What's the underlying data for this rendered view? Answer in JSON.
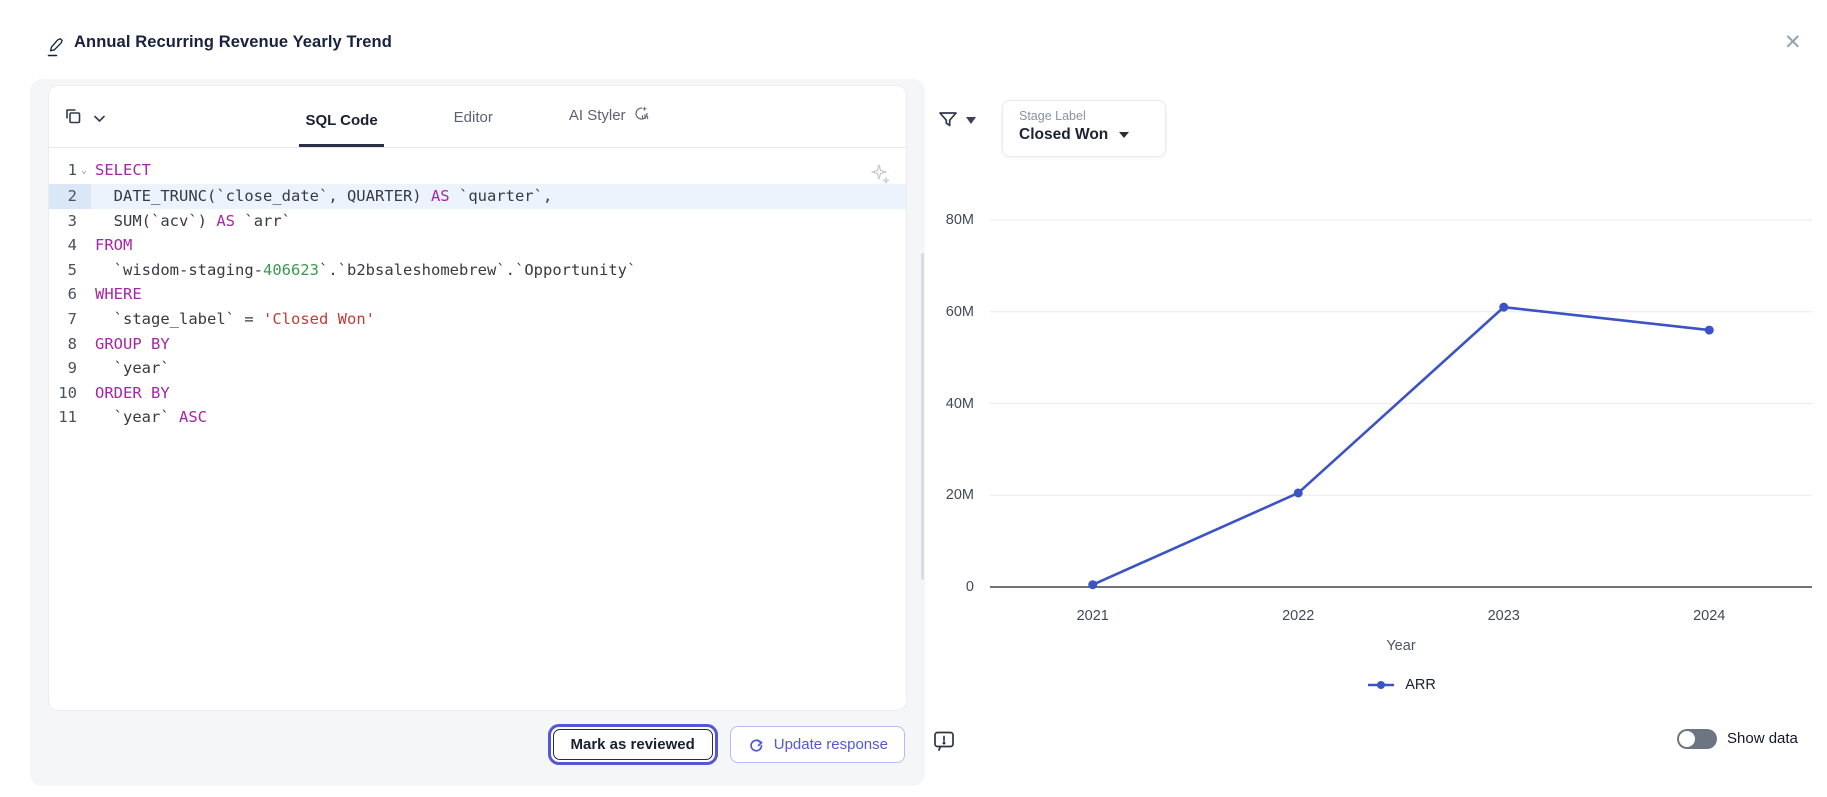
{
  "header": {
    "title": "Annual Recurring Revenue Yearly Trend",
    "close_icon": "✕"
  },
  "panel": {
    "tabs": [
      {
        "id": "sql-code",
        "label": "SQL Code",
        "active": true
      },
      {
        "id": "editor",
        "label": "Editor",
        "active": false
      },
      {
        "id": "ai-styler",
        "label": "AI Styler",
        "active": false
      }
    ],
    "editor": {
      "language": "sql",
      "highlighted_line": 2,
      "lines": [
        {
          "num": 1,
          "fold": true,
          "tokens": [
            [
              "kw",
              "SELECT"
            ]
          ]
        },
        {
          "num": 2,
          "fold": false,
          "tokens": [
            [
              "pl",
              "  DATE_TRUNC("
            ],
            [
              "id",
              "`close_date`"
            ],
            [
              "pl",
              ", QUARTER) "
            ],
            [
              "kw",
              "AS"
            ],
            [
              "pl",
              " "
            ],
            [
              "id",
              "`quarter`"
            ],
            [
              "pl",
              ","
            ]
          ]
        },
        {
          "num": 3,
          "fold": false,
          "tokens": [
            [
              "pl",
              "  SUM("
            ],
            [
              "id",
              "`acv`"
            ],
            [
              "pl",
              ") "
            ],
            [
              "kw",
              "AS"
            ],
            [
              "pl",
              " "
            ],
            [
              "id",
              "`arr`"
            ]
          ]
        },
        {
          "num": 4,
          "fold": false,
          "tokens": [
            [
              "kw",
              "FROM"
            ]
          ]
        },
        {
          "num": 5,
          "fold": false,
          "tokens": [
            [
              "pl",
              "  "
            ],
            [
              "id",
              "`wisdom-staging-"
            ],
            [
              "num",
              "406623"
            ],
            [
              "id",
              "`"
            ],
            [
              "pl",
              "."
            ],
            [
              "id",
              "`b2bsaleshomebrew`"
            ],
            [
              "pl",
              "."
            ],
            [
              "id",
              "`Opportunity`"
            ]
          ]
        },
        {
          "num": 6,
          "fold": false,
          "tokens": [
            [
              "kw",
              "WHERE"
            ]
          ]
        },
        {
          "num": 7,
          "fold": false,
          "tokens": [
            [
              "pl",
              "  "
            ],
            [
              "id",
              "`stage_label`"
            ],
            [
              "pl",
              " = "
            ],
            [
              "str",
              "'Closed Won'"
            ]
          ]
        },
        {
          "num": 8,
          "fold": false,
          "tokens": [
            [
              "kw",
              "GROUP BY"
            ]
          ]
        },
        {
          "num": 9,
          "fold": false,
          "tokens": [
            [
              "pl",
              "  "
            ],
            [
              "id",
              "`year`"
            ]
          ]
        },
        {
          "num": 10,
          "fold": false,
          "tokens": [
            [
              "kw",
              "ORDER BY"
            ]
          ]
        },
        {
          "num": 11,
          "fold": false,
          "tokens": [
            [
              "pl",
              "  "
            ],
            [
              "id",
              "`year`"
            ],
            [
              "pl",
              " "
            ],
            [
              "kw",
              "ASC"
            ]
          ]
        }
      ]
    },
    "actions": {
      "mark_reviewed": "Mark as reviewed",
      "update_response": "Update response"
    }
  },
  "chart_panel": {
    "filter": {
      "label": "Stage Label",
      "value": "Closed Won"
    },
    "show_data_label": "Show data"
  },
  "chart_data": {
    "type": "line",
    "x": [
      "2021",
      "2022",
      "2023",
      "2024"
    ],
    "series": [
      {
        "name": "ARR",
        "color": "#3b53c4",
        "values": [
          500000,
          20500000,
          61000000,
          56000000
        ]
      }
    ],
    "title": "",
    "xlabel": "Year",
    "ylabel": "",
    "ylim": [
      0,
      80000000
    ],
    "yticks": [
      0,
      20000000,
      40000000,
      60000000,
      80000000
    ],
    "ytick_labels": [
      "0",
      "20M",
      "40M",
      "60M",
      "80M"
    ],
    "grid": true,
    "legend_position": "bottom"
  },
  "colors": {
    "accent_indigo": "#5457d6",
    "series_blue": "#3b53c4",
    "keyword_purple": "#a626a4",
    "string_red": "#c43c35",
    "number_green": "#3a9a4e",
    "panel_gray": "#f5f6f8"
  }
}
